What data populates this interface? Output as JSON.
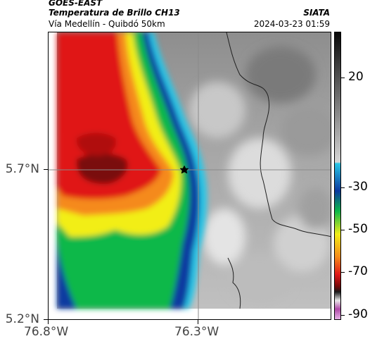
{
  "header": {
    "source": "GOES-EAST",
    "title": "Temperatura de Brillo CH13",
    "subtitle": "Vía Medellín - Quibdó 50km",
    "org": "SIATA",
    "timestamp": "2024-03-23 01:59"
  },
  "axes": {
    "y_ticks": [
      {
        "label": "5.7°N",
        "value": 5.7
      },
      {
        "label": "5.2°N",
        "value": 5.2
      }
    ],
    "x_ticks": [
      {
        "label": "76.8°W",
        "value": -76.8
      },
      {
        "label": "76.3°W",
        "value": -76.3
      }
    ]
  },
  "colorbar": {
    "ticks": [
      {
        "label": "20",
        "value": 20
      },
      {
        "label": "-30",
        "value": -30
      },
      {
        "label": "-50",
        "value": -50
      },
      {
        "label": "-70",
        "value": -70
      },
      {
        "label": "-90",
        "value": -90
      }
    ],
    "colors": {
      "warm_top": "#0a0a0a",
      "warm_bottom": "#d6d6d6",
      "cyan": "#29c6e6",
      "blue": "#0b3aa0",
      "green": "#0bb84a",
      "yellow": "#f2ee18",
      "orange": "#f58a1a",
      "red": "#e01818",
      "darkred": "#7a0a0a",
      "magenta": "#b04aa8"
    }
  },
  "map": {
    "marker_icon": "star-icon",
    "crosshair": true
  }
}
